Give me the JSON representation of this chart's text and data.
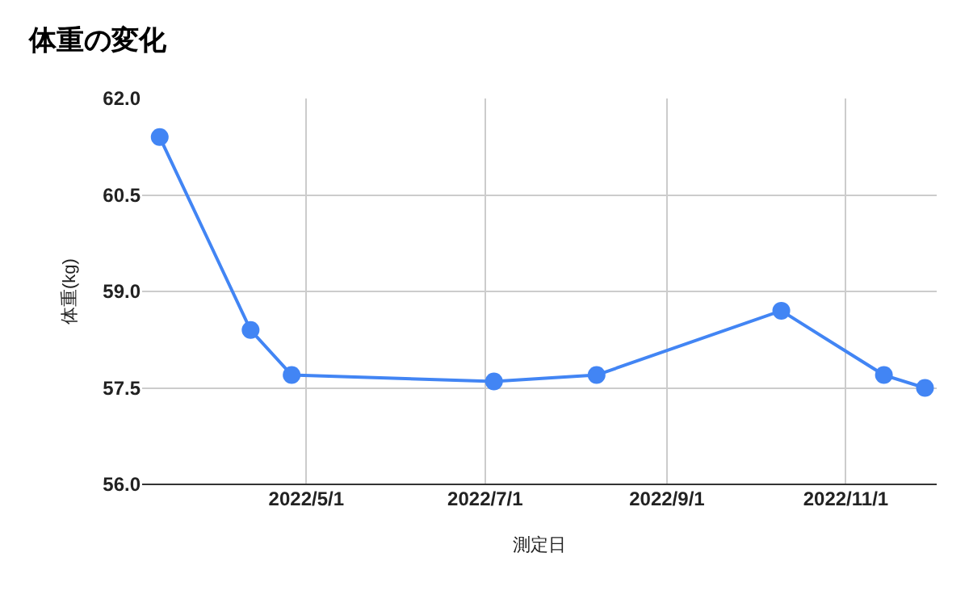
{
  "chart_data": {
    "type": "line",
    "title": "体重の変化",
    "xlabel": "測定日",
    "ylabel": "体重(kg)",
    "x": [
      "2022-03-12",
      "2022-04-12",
      "2022-04-26",
      "2022-07-04",
      "2022-08-08",
      "2022-10-10",
      "2022-11-14",
      "2022-11-28"
    ],
    "series": [
      {
        "color": "#4285f4",
        "values": [
          61.4,
          58.4,
          57.7,
          57.6,
          57.7,
          58.7,
          57.7,
          57.5
        ]
      }
    ],
    "xlim": [
      "2022-03-06",
      "2022-12-02"
    ],
    "xticks": [
      {
        "value": "2022-05-01",
        "label": "2022/5/1"
      },
      {
        "value": "2022-07-01",
        "label": "2022/7/1"
      },
      {
        "value": "2022-09-01",
        "label": "2022/9/1"
      },
      {
        "value": "2022-11-01",
        "label": "2022/11/1"
      }
    ],
    "ylim": [
      56,
      62
    ],
    "yticks": [
      {
        "value": 56,
        "label": "56.0"
      },
      {
        "value": 57.5,
        "label": "57.5"
      },
      {
        "value": 59,
        "label": "59.0"
      },
      {
        "value": 60.5,
        "label": "60.5"
      },
      {
        "value": 62,
        "label": "62.0"
      }
    ],
    "grid": true,
    "marker": "circle",
    "line_style": "solid"
  }
}
